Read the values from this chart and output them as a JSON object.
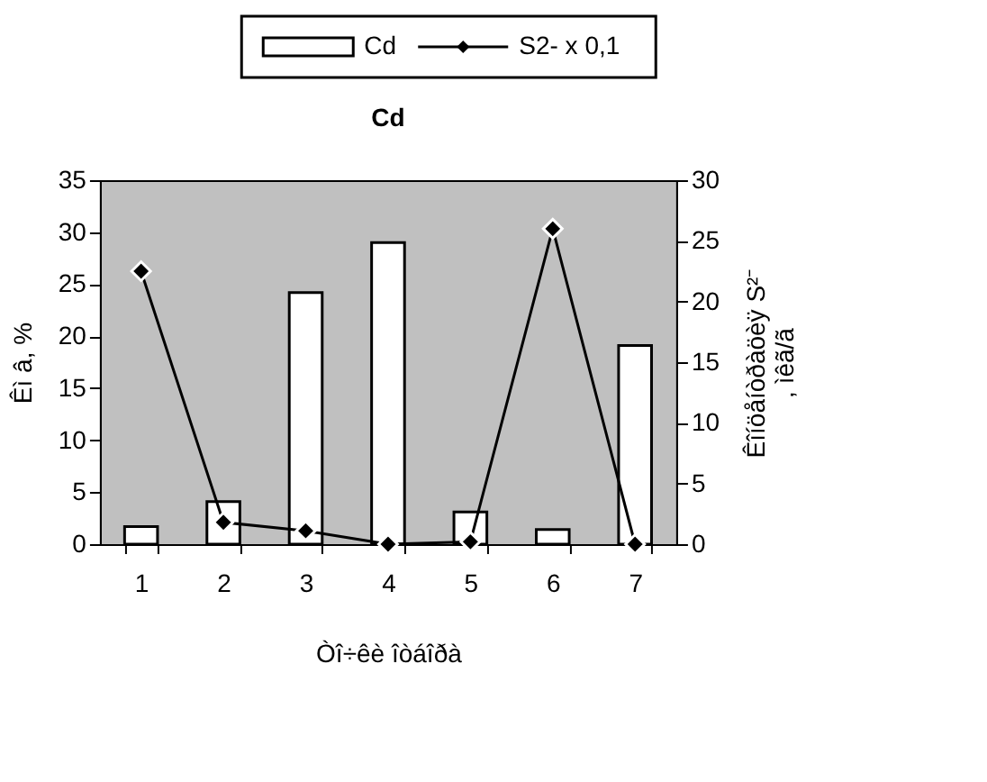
{
  "chart_data": {
    "type": "bar",
    "title": "Cd",
    "xlabel": "Òî÷êè îòáîðà",
    "ylabel": "Êì â, %",
    "y2label": "Êîíöåíòðàöèÿ S²⁻, ìêã/ã",
    "categories": [
      "1",
      "2",
      "3",
      "4",
      "5",
      "6",
      "7"
    ],
    "series": [
      {
        "name": "Cd",
        "color": "#ffffff",
        "values": [
          1.7,
          4.1,
          24.2,
          29.0,
          3.1,
          1.4,
          19.1
        ]
      },
      {
        "name": "S2- x 0,1",
        "type": "line",
        "axis": "y2",
        "color": "#000000",
        "values": [
          22.5,
          1.8,
          1.1,
          0,
          0.2,
          26.0,
          0
        ]
      }
    ],
    "ylim": [
      0,
      35
    ],
    "yticks": [
      0,
      5,
      10,
      15,
      20,
      25,
      30,
      35
    ],
    "y2lim": [
      0,
      30
    ],
    "y2ticks": [
      0,
      5,
      10,
      15,
      20,
      25,
      30
    ],
    "grid": false,
    "legend": "top",
    "marker": "diamond",
    "line_style": "solid"
  }
}
